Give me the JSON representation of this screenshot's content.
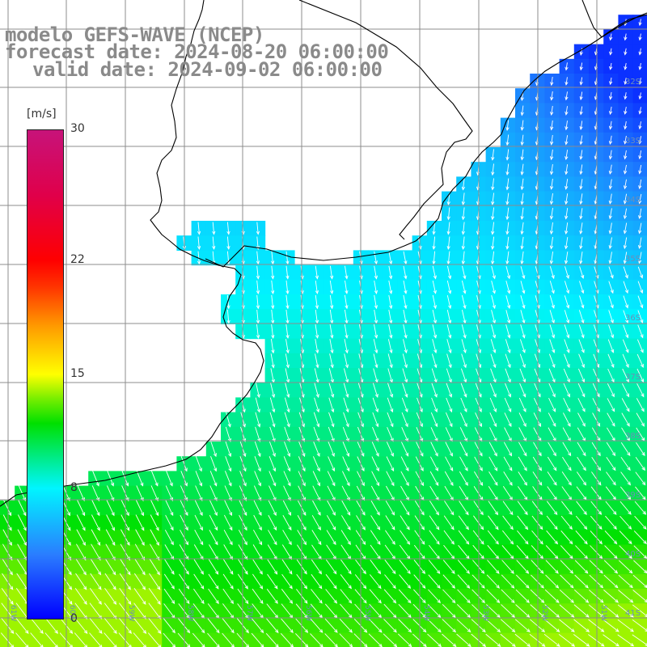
{
  "header": {
    "title": "modelo GEFS-WAVE (NCEP)",
    "forecast": "forecast date: 2024-08-20 06:00:00",
    "valid": "valid date: 2024-09-02 06:00:00"
  },
  "colorbar": {
    "unit": "[m/s]",
    "ticks": [
      {
        "value": 30,
        "label": "30"
      },
      {
        "value": 22,
        "label": "22"
      },
      {
        "value": 15,
        "label": "15"
      },
      {
        "value": 8,
        "label": "8"
      },
      {
        "value": 0,
        "label": "0"
      }
    ],
    "range": [
      0,
      30
    ],
    "colors": {
      "min": "#0000ff",
      "low": "#00f5ff",
      "mid": "#00e000",
      "warm": "#ffff00",
      "high": "#ff0000",
      "max": "#c7137a"
    }
  },
  "map": {
    "lon_range": [
      -61,
      -50
    ],
    "lat_range": [
      -41.5,
      -31
    ],
    "lat_labels": [
      "32S",
      "33S",
      "34S",
      "35S",
      "36S",
      "37S",
      "38S",
      "39S",
      "40S",
      "41S"
    ],
    "lon_labels": [
      "61W",
      "60W",
      "59W",
      "58W",
      "57W",
      "56W",
      "55W",
      "54W",
      "53W",
      "52W",
      "51W"
    ],
    "land_color": "#ffffff",
    "coast_color": "#000000",
    "grid_color": "#8c8c8c",
    "arrow_color": "#ffffff"
  }
}
